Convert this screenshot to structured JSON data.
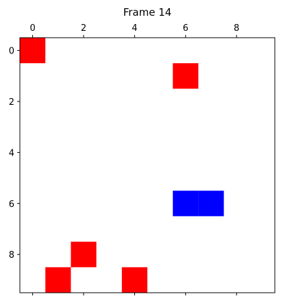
{
  "chart_data": {
    "type": "heatmap",
    "title": "Frame 14",
    "xlabel": "",
    "ylabel": "",
    "grid_size": [
      10,
      10
    ],
    "xlim": [
      -0.5,
      9.5
    ],
    "ylim": [
      9.5,
      -0.5
    ],
    "x_axis_position": "top",
    "x_ticks": [
      0,
      2,
      4,
      6,
      8
    ],
    "y_ticks": [
      0,
      2,
      4,
      6,
      8
    ],
    "x_tick_labels": [
      "0",
      "2",
      "4",
      "6",
      "8"
    ],
    "y_tick_labels": [
      "0",
      "2",
      "4",
      "6",
      "8"
    ],
    "grid": false,
    "background_color": "#ffffff",
    "cells": [
      {
        "row": 0,
        "col": 0,
        "color": "#ff0000"
      },
      {
        "row": 1,
        "col": 6,
        "color": "#ff0000"
      },
      {
        "row": 6,
        "col": 6,
        "color": "#0000ff"
      },
      {
        "row": 6,
        "col": 7,
        "color": "#0000ff"
      },
      {
        "row": 8,
        "col": 2,
        "color": "#ff0000"
      },
      {
        "row": 9,
        "col": 1,
        "color": "#ff0000"
      },
      {
        "row": 9,
        "col": 4,
        "color": "#ff0000"
      }
    ]
  }
}
